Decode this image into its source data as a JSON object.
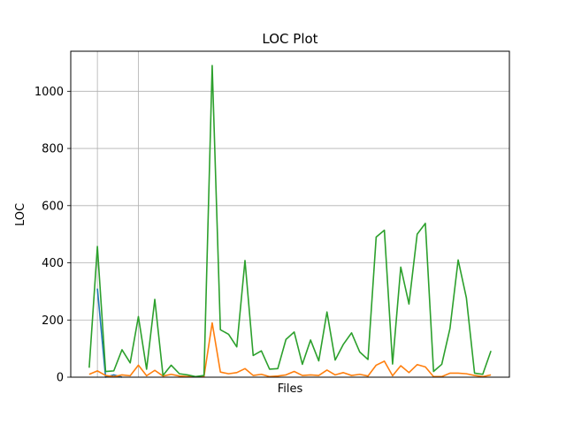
{
  "chart_data": {
    "type": "line",
    "title": "LOC Plot",
    "xlabel": "Files",
    "ylabel": "LOC",
    "ylim": [
      0,
      1140
    ],
    "xlim": [
      -2.25,
      51.25
    ],
    "yticks": [
      0,
      200,
      400,
      600,
      800,
      1000
    ],
    "grid": true,
    "legend": "none",
    "x": [
      0,
      1,
      2,
      3,
      4,
      5,
      6,
      7,
      8,
      9,
      10,
      11,
      12,
      13,
      14,
      15,
      16,
      17,
      18,
      19,
      20,
      21,
      22,
      23,
      24,
      25,
      26,
      27,
      28,
      29,
      30,
      31,
      32,
      33,
      34,
      35,
      36,
      37,
      38,
      39,
      40,
      41,
      42,
      43,
      44,
      45,
      46,
      47,
      48,
      49
    ],
    "series": [
      {
        "color": "#1f77b4",
        "values": [
          null,
          310,
          0,
          8,
          0,
          null,
          null,
          null,
          null,
          null,
          null,
          null,
          null,
          null,
          null,
          null,
          null,
          null,
          null,
          null,
          null,
          null,
          null,
          null,
          null,
          null,
          null,
          null,
          null,
          null,
          null,
          null,
          null,
          null,
          null,
          null,
          null,
          null,
          null,
          null,
          null,
          null,
          null,
          null,
          null,
          null,
          null,
          null,
          null,
          null
        ]
      },
      {
        "color": "#ff7f0e",
        "values": [
          10,
          22,
          6,
          2,
          8,
          5,
          42,
          5,
          24,
          4,
          10,
          4,
          2,
          2,
          2,
          190,
          18,
          12,
          16,
          30,
          6,
          10,
          2,
          4,
          8,
          20,
          6,
          8,
          6,
          25,
          8,
          16,
          6,
          10,
          4,
          42,
          56,
          5,
          40,
          16,
          44,
          36,
          2,
          2,
          14,
          14,
          12,
          6,
          2,
          8
        ]
      },
      {
        "color": "#2ca02c",
        "values": [
          33,
          457,
          20,
          22,
          96,
          50,
          212,
          28,
          272,
          6,
          42,
          12,
          8,
          2,
          6,
          1090,
          166,
          150,
          106,
          408,
          76,
          92,
          28,
          30,
          132,
          158,
          45,
          130,
          57,
          228,
          60,
          115,
          155,
          88,
          62,
          490,
          514,
          46,
          385,
          256,
          500,
          538,
          20,
          45,
          170,
          410,
          278,
          14,
          10,
          92
        ]
      }
    ]
  }
}
